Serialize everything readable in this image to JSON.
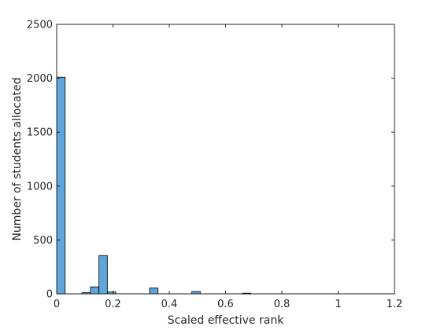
{
  "chart_data": {
    "type": "bar",
    "xlabel": "Scaled effective rank",
    "ylabel": "Number of students allocated",
    "xlim": [
      0,
      1.2
    ],
    "ylim": [
      0,
      2500
    ],
    "xticks": [
      0,
      0.2,
      0.4,
      0.6,
      0.8,
      1,
      1.2
    ],
    "xtick_labels": [
      "0",
      "0.2",
      "0.4",
      "0.6",
      "0.8",
      "1",
      "1.2"
    ],
    "yticks": [
      0,
      500,
      1000,
      1500,
      2000,
      2500
    ],
    "ytick_labels": [
      "0",
      "500",
      "1000",
      "1500",
      "2000",
      "2500"
    ],
    "bin_width": 0.03,
    "bins": [
      {
        "x0": 0.0,
        "value": 2010
      },
      {
        "x0": 0.09,
        "value": 12
      },
      {
        "x0": 0.12,
        "value": 65
      },
      {
        "x0": 0.15,
        "value": 355
      },
      {
        "x0": 0.18,
        "value": 18
      },
      {
        "x0": 0.33,
        "value": 55
      },
      {
        "x0": 0.48,
        "value": 22
      },
      {
        "x0": 0.66,
        "value": 6
      }
    ],
    "grid": false,
    "box": true,
    "colors": {
      "bar_fill": "#5da5da",
      "bar_edge": "#000000",
      "axis": "#262626"
    }
  }
}
